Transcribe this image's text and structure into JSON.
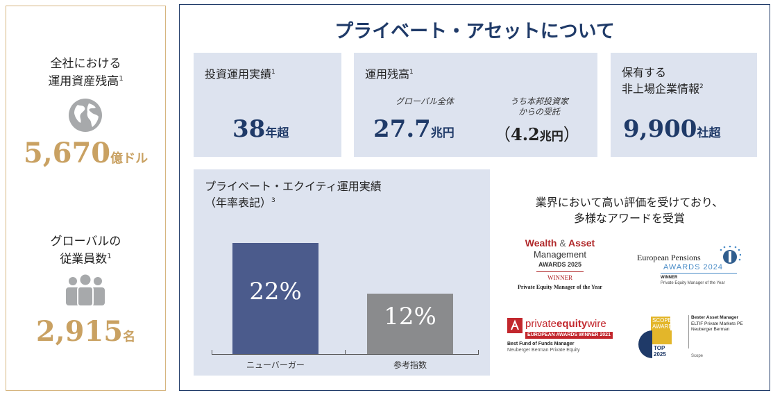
{
  "left": {
    "aum_label_line1": "全社における",
    "aum_label_line2": "運用資産残高",
    "aum_note": "1",
    "aum_value": "5,670",
    "aum_unit": "億ドル",
    "emp_label_line1": "グローバルの",
    "emp_label_line2": "従業員数",
    "emp_note": "1",
    "emp_value": "2,915",
    "emp_unit": "名"
  },
  "right": {
    "title": "プライベート・アセットについて",
    "track_record": {
      "label": "投資運用実績",
      "note": "1",
      "value": "38",
      "unit": "年超"
    },
    "aum": {
      "label": "運用残高",
      "note": "1",
      "global_label": "グローバル全体",
      "global_value": "27.7",
      "global_unit": "兆円",
      "japan_label_line1": "うち本邦投資家",
      "japan_label_line2": "からの受託",
      "japan_open": "（",
      "japan_value": "4.2",
      "japan_unit": "兆円",
      "japan_close": "）"
    },
    "companies": {
      "label_line1": "保有する",
      "label_line2": "非上場企業情報",
      "note": "2",
      "value": "9,900",
      "unit": "社超"
    },
    "pe_chart": {
      "title_line1": "プライベート・エクイティ運用実績",
      "title_line2": "（年率表記）",
      "note": "3"
    },
    "awards": {
      "title_line1": "業界において高い評価を受けており、",
      "title_line2": "多様なアワードを受賞",
      "wam": {
        "line1": "Wealth",
        "amp": "&",
        "line1b": "Asset",
        "line2": "Management",
        "line3": "AWARDS 2025",
        "line4": "WINNER",
        "line5": "Private Equity Manager of the Year"
      },
      "ep": {
        "line1": "European Pensions",
        "line2": "AWARDS 2024",
        "line3": "WINNER",
        "line4": "Private Equity Manager of the Year"
      },
      "pew": {
        "line1a": "private",
        "line1b": "equity",
        "line1c": "wire",
        "line2": "EUROPEAN AWARDS WINNER 2021",
        "line3": "Best Fund of Funds Manager",
        "line4": "Neuberger Berman Private Equity"
      },
      "scope": {
        "line1": "SCOPE",
        "line2": "AWARD",
        "line3": "Bester Asset Manager",
        "line4": "ELTIF Private Markets PE",
        "line5": "Neuberger Berman",
        "line6": "TOP",
        "line7": "2025",
        "line8": "Scope"
      }
    }
  },
  "chart_data": {
    "type": "bar",
    "categories": [
      "ニューバーガー",
      "参考指数"
    ],
    "values": [
      22,
      12
    ],
    "value_labels": [
      "22%",
      "12%"
    ],
    "colors": [
      "#4b5b8c",
      "#8a8b8d"
    ],
    "title": "プライベート・エクイティ運用実績（年率表記）",
    "xlabel": "",
    "ylabel": "",
    "ylim": [
      0,
      22
    ]
  },
  "colors": {
    "gold": "#c9a162",
    "navy": "#1f3a68",
    "card_bg": "#dde3ef",
    "gray_icon": "#a7a9ab"
  },
  "icons": {
    "globe": "globe-icon",
    "people": "people-icon"
  }
}
